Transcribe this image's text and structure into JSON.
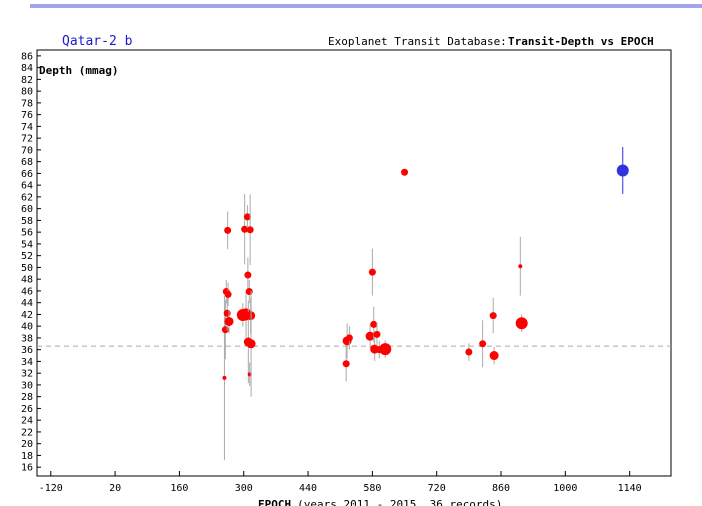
{
  "header": {
    "planet": "Qatar-2 b",
    "database": "Exoplanet Transit Database:",
    "plot_title": "Transit-Depth vs EPOCH"
  },
  "colors": {
    "border": "#4a4ad8",
    "points": "#ff0000",
    "highlight": "#3333dd",
    "errorbar": "#aaaaaa",
    "reference": "#aaaaaa"
  },
  "chart_data": {
    "type": "scatter",
    "ylabel": "Depth (mmag)",
    "xlabel_bold": "EPOCH",
    "xlabel_rest": "(years 2011 - 2015, 36 records)",
    "xlim": [
      -150,
      1230
    ],
    "ylim": [
      14.5,
      87
    ],
    "xticks": [
      -120,
      20,
      160,
      300,
      440,
      580,
      720,
      860,
      1000,
      1140
    ],
    "yticks": [
      16,
      18,
      20,
      22,
      24,
      26,
      28,
      30,
      32,
      34,
      36,
      38,
      40,
      42,
      44,
      46,
      48,
      50,
      52,
      54,
      56,
      58,
      60,
      62,
      64,
      66,
      68,
      70,
      72,
      74,
      76,
      78,
      80,
      82,
      84,
      86
    ],
    "reference_depth": 36.6,
    "points": [
      {
        "x": 258,
        "y": 31.2,
        "err": 14,
        "q": 1
      },
      {
        "x": 260,
        "y": 39.4,
        "err": 5,
        "q": 2
      },
      {
        "x": 262,
        "y": 45.9,
        "err": 2,
        "q": 2
      },
      {
        "x": 264,
        "y": 42.2,
        "err": 3,
        "q": 2
      },
      {
        "x": 265,
        "y": 56.3,
        "err": 3.2,
        "q": 2
      },
      {
        "x": 266,
        "y": 45.4,
        "err": 2,
        "q": 2
      },
      {
        "x": 268,
        "y": 40.8,
        "err": 2,
        "q": 3
      },
      {
        "x": 298,
        "y": 41.9,
        "err": 2,
        "q": 4
      },
      {
        "x": 302,
        "y": 56.5,
        "err": 6,
        "q": 2
      },
      {
        "x": 305,
        "y": 42.0,
        "err": 4,
        "q": 4
      },
      {
        "x": 308,
        "y": 58.6,
        "err": 2,
        "q": 2
      },
      {
        "x": 309,
        "y": 48.7,
        "err": 3,
        "q": 2
      },
      {
        "x": 310,
        "y": 37.3,
        "err": 7,
        "q": 3
      },
      {
        "x": 312,
        "y": 45.9,
        "err": 2,
        "q": 2
      },
      {
        "x": 313,
        "y": 31.8,
        "err": 2,
        "q": 1
      },
      {
        "x": 314,
        "y": 56.4,
        "err": 6,
        "q": 2
      },
      {
        "x": 315,
        "y": 41.8,
        "err": 3,
        "q": 3
      },
      {
        "x": 316,
        "y": 37.0,
        "err": 9,
        "q": 3
      },
      {
        "x": 523,
        "y": 33.6,
        "err": 3,
        "q": 2
      },
      {
        "x": 525,
        "y": 37.5,
        "err": 3,
        "q": 3
      },
      {
        "x": 530,
        "y": 38.0,
        "err": 2,
        "q": 2
      },
      {
        "x": 575,
        "y": 38.3,
        "err": 2,
        "q": 3
      },
      {
        "x": 580,
        "y": 49.2,
        "err": 4,
        "q": 2
      },
      {
        "x": 583,
        "y": 40.3,
        "err": 3,
        "q": 2
      },
      {
        "x": 585,
        "y": 36.1,
        "err": 2,
        "q": 3
      },
      {
        "x": 590,
        "y": 38.6,
        "err": 2,
        "q": 2
      },
      {
        "x": 595,
        "y": 36.0,
        "err": 1.5,
        "q": 2
      },
      {
        "x": 608,
        "y": 36.1,
        "err": 1.5,
        "q": 4
      },
      {
        "x": 650,
        "y": 66.2,
        "err": 0,
        "q": 2
      },
      {
        "x": 790,
        "y": 35.6,
        "err": 1.5,
        "q": 2
      },
      {
        "x": 820,
        "y": 37.0,
        "err": 4,
        "q": 2
      },
      {
        "x": 843,
        "y": 41.8,
        "err": 3,
        "q": 2
      },
      {
        "x": 845,
        "y": 35.0,
        "err": 1.5,
        "q": 3
      },
      {
        "x": 902,
        "y": 50.2,
        "err": 5,
        "q": 1
      },
      {
        "x": 905,
        "y": 40.5,
        "err": 1.5,
        "q": 4
      },
      {
        "x": 1125,
        "y": 66.5,
        "err": 4,
        "q": 4,
        "highlight": true
      }
    ]
  }
}
